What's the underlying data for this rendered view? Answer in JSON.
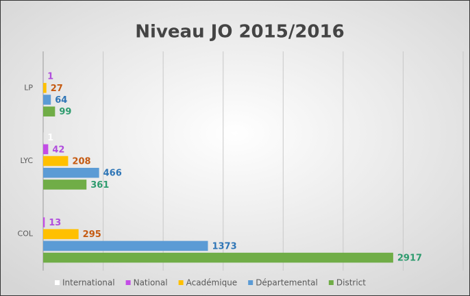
{
  "chart_data": {
    "type": "hbar",
    "title": "Niveau JO 2015/2016",
    "categories": [
      "LP",
      "LYC",
      "COL"
    ],
    "series": [
      {
        "name": "International",
        "color": "#ffffff",
        "label_color": "#ffffff",
        "values": [
          null,
          1,
          null
        ]
      },
      {
        "name": "National",
        "color": "#c34de6",
        "label_color": "#b04ddd",
        "values": [
          1,
          42,
          13
        ]
      },
      {
        "name": "Académique",
        "color": "#ffc000",
        "label_color": "#c55a11",
        "values": [
          27,
          208,
          295
        ]
      },
      {
        "name": "Départemental",
        "color": "#5b9bd5",
        "label_color": "#2e75b6",
        "values": [
          64,
          466,
          1373
        ]
      },
      {
        "name": "District",
        "color": "#70ad47",
        "label_color": "#2e9b6e",
        "values": [
          99,
          361,
          2917
        ]
      }
    ],
    "xlim": [
      0,
      3500
    ],
    "xticks": [
      0,
      500,
      1000,
      1500,
      2000,
      2500,
      3000,
      3500
    ],
    "grid": true
  }
}
